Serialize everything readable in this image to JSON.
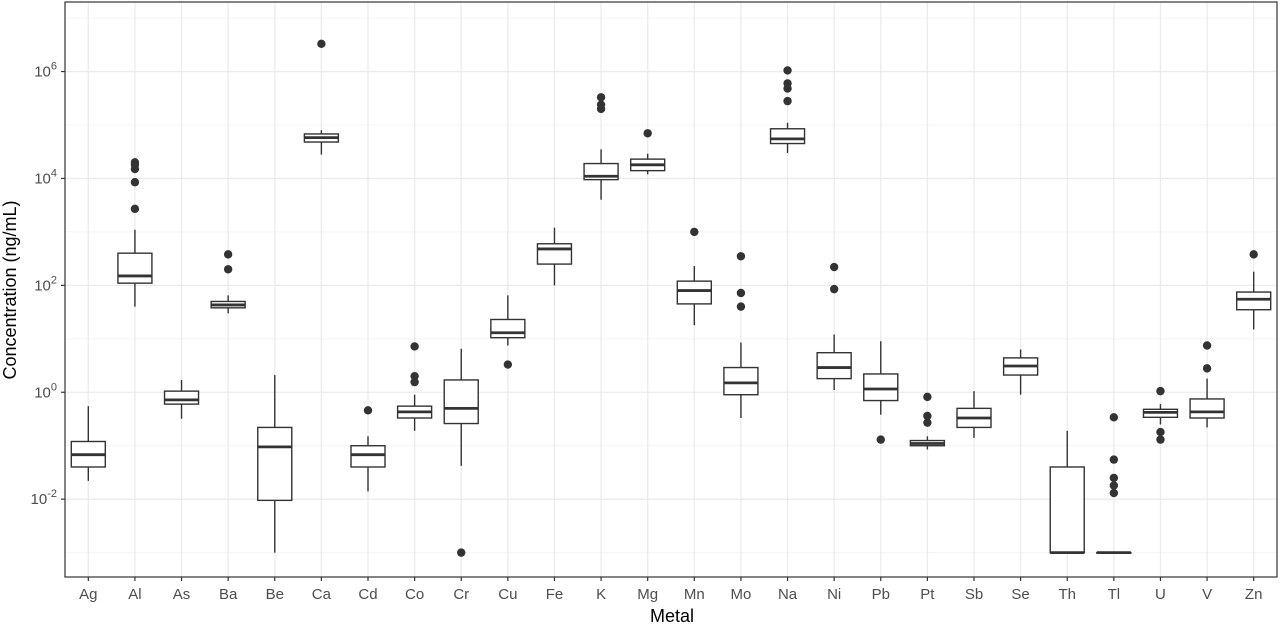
{
  "chart_data": {
    "type": "boxplot",
    "title": "",
    "xlabel": "Metal",
    "ylabel": "Concentration (ng/mL)",
    "yscale": "log10",
    "ylim": [
      0.00035,
      20000000
    ],
    "grid": true,
    "y_ticks": [
      {
        "value": 0.01,
        "base": "10",
        "exp": "-2"
      },
      {
        "value": 1,
        "base": "10",
        "exp": "0"
      },
      {
        "value": 100,
        "base": "10",
        "exp": "2"
      },
      {
        "value": 10000,
        "base": "10",
        "exp": "4"
      },
      {
        "value": 1000000,
        "base": "10",
        "exp": "6"
      }
    ],
    "categories": [
      "Ag",
      "Al",
      "As",
      "Ba",
      "Be",
      "Ca",
      "Cd",
      "Co",
      "Cr",
      "Cu",
      "Fe",
      "K",
      "Mg",
      "Mn",
      "Mo",
      "Na",
      "Ni",
      "Pb",
      "Pt",
      "Sb",
      "Se",
      "Th",
      "Tl",
      "U",
      "V",
      "Zn"
    ],
    "boxes": [
      {
        "cat": "Ag",
        "whisker_low": 0.022,
        "q1": 0.04,
        "median": 0.068,
        "q3": 0.12,
        "whisker_high": 0.55,
        "outliers": []
      },
      {
        "cat": "Al",
        "whisker_low": 40,
        "q1": 110,
        "median": 150,
        "q3": 400,
        "whisker_high": 1100,
        "outliers": [
          2700,
          8500,
          15000,
          18000,
          20000
        ]
      },
      {
        "cat": "As",
        "whisker_low": 0.32,
        "q1": 0.6,
        "median": 0.72,
        "q3": 1.05,
        "whisker_high": 1.7,
        "outliers": []
      },
      {
        "cat": "Ba",
        "whisker_low": 30,
        "q1": 38,
        "median": 43,
        "q3": 50,
        "whisker_high": 65,
        "outliers": [
          200,
          380
        ]
      },
      {
        "cat": "Be",
        "whisker_low": 0.001,
        "q1": 0.0095,
        "median": 0.095,
        "q3": 0.22,
        "whisker_high": 2.1,
        "outliers": []
      },
      {
        "cat": "Ca",
        "whisker_low": 28000,
        "q1": 48000,
        "median": 58000,
        "q3": 68000,
        "whisker_high": 80000,
        "outliers": [
          3300000
        ]
      },
      {
        "cat": "Cd",
        "whisker_low": 0.014,
        "q1": 0.04,
        "median": 0.068,
        "q3": 0.1,
        "whisker_high": 0.15,
        "outliers": [
          0.46
        ]
      },
      {
        "cat": "Co",
        "whisker_low": 0.19,
        "q1": 0.33,
        "median": 0.43,
        "q3": 0.55,
        "whisker_high": 0.9,
        "outliers": [
          1.55,
          2.0,
          7.2
        ]
      },
      {
        "cat": "Cr",
        "whisker_low": 0.042,
        "q1": 0.26,
        "median": 0.5,
        "q3": 1.7,
        "whisker_high": 6.5,
        "outliers": [
          0.001
        ]
      },
      {
        "cat": "Cu",
        "whisker_low": 7.5,
        "q1": 10.5,
        "median": 13,
        "q3": 23,
        "whisker_high": 65,
        "outliers": [
          3.3
        ]
      },
      {
        "cat": "Fe",
        "whisker_low": 100,
        "q1": 250,
        "median": 480,
        "q3": 600,
        "whisker_high": 1200,
        "outliers": []
      },
      {
        "cat": "K",
        "whisker_low": 4000,
        "q1": 9500,
        "median": 11000,
        "q3": 19000,
        "whisker_high": 35000,
        "outliers": [
          200000,
          240000,
          330000
        ]
      },
      {
        "cat": "Mg",
        "whisker_low": 12000,
        "q1": 14000,
        "median": 18000,
        "q3": 23000,
        "whisker_high": 29000,
        "outliers": [
          70000
        ]
      },
      {
        "cat": "Mn",
        "whisker_low": 18,
        "q1": 45,
        "median": 80,
        "q3": 120,
        "whisker_high": 230,
        "outliers": [
          1000
        ]
      },
      {
        "cat": "Mo",
        "whisker_low": 0.33,
        "q1": 0.9,
        "median": 1.5,
        "q3": 2.9,
        "whisker_high": 8.5,
        "outliers": [
          40,
          72,
          350
        ]
      },
      {
        "cat": "Na",
        "whisker_low": 30000,
        "q1": 45000,
        "median": 55000,
        "q3": 85000,
        "whisker_high": 110000,
        "outliers": [
          280000,
          480000,
          600000,
          1050000
        ]
      },
      {
        "cat": "Ni",
        "whisker_low": 1.1,
        "q1": 1.8,
        "median": 2.9,
        "q3": 5.5,
        "whisker_high": 12,
        "outliers": [
          85,
          220
        ]
      },
      {
        "cat": "Pb",
        "whisker_low": 0.38,
        "q1": 0.7,
        "median": 1.15,
        "q3": 2.2,
        "whisker_high": 9,
        "outliers": [
          0.13
        ]
      },
      {
        "cat": "Pt",
        "whisker_low": 0.085,
        "q1": 0.1,
        "median": 0.11,
        "q3": 0.125,
        "whisker_high": 0.15,
        "outliers": [
          0.27,
          0.36,
          0.82
        ]
      },
      {
        "cat": "Sb",
        "whisker_low": 0.14,
        "q1": 0.22,
        "median": 0.33,
        "q3": 0.5,
        "whisker_high": 1.05,
        "outliers": []
      },
      {
        "cat": "Se",
        "whisker_low": 0.9,
        "q1": 2.1,
        "median": 3.1,
        "q3": 4.4,
        "whisker_high": 6.3,
        "outliers": []
      },
      {
        "cat": "Th",
        "whisker_low": 0.001,
        "q1": 0.001,
        "median": 0.001,
        "q3": 0.04,
        "whisker_high": 0.19,
        "outliers": []
      },
      {
        "cat": "Tl",
        "whisker_low": 0.001,
        "q1": 0.001,
        "median": 0.001,
        "q3": 0.001,
        "whisker_high": 0.001,
        "outliers": [
          0.013,
          0.018,
          0.025,
          0.055,
          0.34
        ]
      },
      {
        "cat": "U",
        "whisker_low": 0.25,
        "q1": 0.34,
        "median": 0.42,
        "q3": 0.48,
        "whisker_high": 0.6,
        "outliers": [
          0.13,
          0.18,
          1.05
        ]
      },
      {
        "cat": "V",
        "whisker_low": 0.22,
        "q1": 0.33,
        "median": 0.43,
        "q3": 0.75,
        "whisker_high": 1.8,
        "outliers": [
          2.8,
          7.5
        ]
      },
      {
        "cat": "Zn",
        "whisker_low": 15,
        "q1": 35,
        "median": 55,
        "q3": 75,
        "whisker_high": 180,
        "outliers": [
          380
        ]
      }
    ]
  },
  "colors": {
    "panel_border": "#333333",
    "grid_major": "#ebebeb",
    "grid_minor": "#f4f4f4",
    "box_stroke": "#333333",
    "median": "#333333",
    "outlier": "#333333",
    "tick_text": "#4d4d4d",
    "axis_title": "#000000"
  }
}
